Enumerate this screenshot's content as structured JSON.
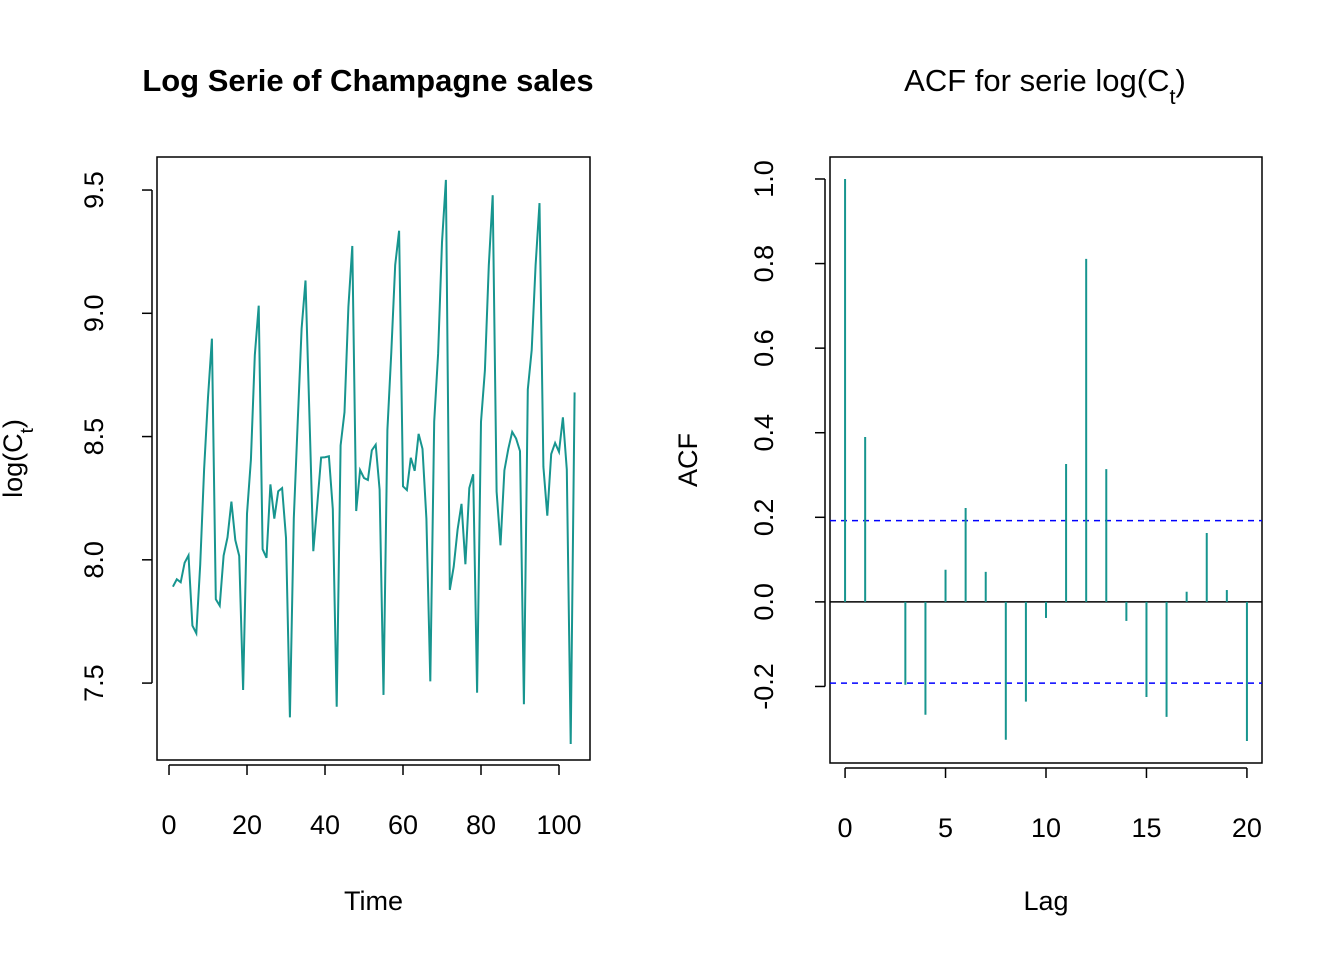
{
  "chart_data": [
    {
      "type": "line",
      "title": "Log Serie of Champagne sales",
      "xlabel": "Time",
      "ylabel": [
        "log(C",
        "t",
        ")"
      ],
      "color": "#17958f",
      "x": [
        1,
        2,
        3,
        4,
        5,
        6,
        7,
        8,
        9,
        10,
        11,
        12,
        13,
        14,
        15,
        16,
        17,
        18,
        19,
        20,
        21,
        22,
        23,
        24,
        25,
        26,
        27,
        28,
        29,
        30,
        31,
        32,
        33,
        34,
        35,
        36,
        37,
        38,
        39,
        40,
        41,
        42,
        43,
        44,
        45,
        46,
        47,
        48,
        49,
        50,
        51,
        52,
        53,
        54,
        55,
        56,
        57,
        58,
        59,
        60,
        61,
        62,
        63,
        64,
        65,
        66,
        67,
        68,
        69,
        70,
        71,
        72,
        73,
        74,
        75,
        76,
        77,
        78,
        79,
        80,
        81,
        82,
        83,
        84,
        85,
        86,
        87,
        88,
        89,
        90,
        91,
        92,
        93,
        94,
        95,
        96,
        97,
        98,
        99,
        100,
        101,
        102,
        103,
        104
      ],
      "values": [
        7.891,
        7.921,
        7.909,
        7.988,
        8.018,
        7.733,
        7.702,
        7.98,
        8.367,
        8.659,
        8.897,
        7.84,
        7.814,
        8.017,
        8.091,
        8.236,
        8.08,
        8.016,
        7.472,
        8.187,
        8.406,
        8.83,
        9.031,
        8.043,
        8.008,
        8.306,
        8.167,
        8.278,
        8.291,
        8.089,
        7.361,
        8.169,
        8.559,
        8.938,
        9.133,
        8.589,
        8.035,
        8.221,
        8.415,
        8.416,
        8.42,
        8.206,
        7.404,
        8.464,
        8.599,
        9.026,
        9.273,
        8.198,
        8.364,
        8.332,
        8.324,
        8.444,
        8.467,
        8.285,
        7.452,
        8.527,
        8.842,
        9.196,
        9.335,
        8.298,
        8.283,
        8.414,
        8.361,
        8.511,
        8.45,
        8.167,
        7.507,
        8.561,
        8.835,
        9.288,
        9.541,
        7.878,
        7.972,
        8.123,
        8.227,
        7.982,
        8.291,
        8.347,
        7.461,
        8.56,
        8.768,
        9.194,
        9.479,
        8.277,
        8.059,
        8.363,
        8.45,
        8.519,
        8.492,
        8.441,
        7.414,
        8.691,
        8.851,
        9.195,
        9.447,
        8.377,
        8.179,
        8.429,
        8.474,
        8.438,
        8.578,
        8.366,
        7.253,
        8.679
      ],
      "xlim": [
        -3.08,
        107.95
      ],
      "ylim": [
        7.188,
        9.634
      ],
      "xticks": [
        0,
        20,
        40,
        60,
        80,
        100
      ],
      "yticks": [
        7.5,
        {
          "value": 8,
          "label": "8.0"
        },
        8.5,
        {
          "value": 9,
          "label": "9.0"
        },
        9.5
      ]
    },
    {
      "type": "acf",
      "title": [
        "ACF for serie log(C",
        "t",
        ")"
      ],
      "xlabel": "Lag",
      "ylabel": "ACF",
      "color": "#17958f",
      "ci_color": "#0000ff",
      "x": [
        0,
        1,
        2,
        3,
        4,
        5,
        6,
        7,
        8,
        9,
        10,
        11,
        12,
        13,
        14,
        15,
        16,
        17,
        18,
        19,
        20
      ],
      "values": [
        1.0,
        0.39,
        0.0,
        -0.196,
        -0.267,
        0.076,
        0.222,
        0.071,
        -0.326,
        -0.236,
        -0.038,
        0.326,
        0.811,
        0.314,
        -0.045,
        -0.225,
        -0.272,
        0.024,
        0.163,
        0.028,
        -0.329
      ],
      "ci": [
        -0.192,
        0.192
      ],
      "xlim": [
        -0.75,
        20.75
      ],
      "ylim": [
        -0.381,
        1.052
      ],
      "xticks": [
        0,
        5,
        10,
        15,
        20
      ],
      "yticks": [
        -0.2,
        {
          "value": 0,
          "label": "0.0"
        },
        0.2,
        0.4,
        0.6,
        0.8,
        {
          "value": 1,
          "label": "1.0"
        }
      ]
    }
  ]
}
